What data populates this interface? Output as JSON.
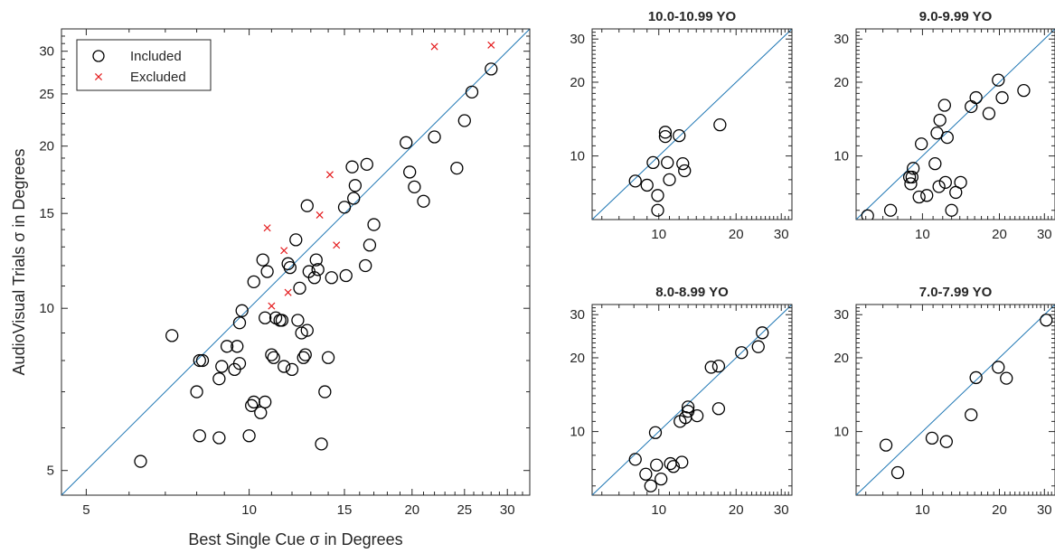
{
  "colors": {
    "included": "#000000",
    "excluded": "#e41a1c",
    "identity_line": "#1f77b4",
    "axes": "#262626"
  },
  "chart_data": [
    {
      "type": "scatter",
      "title": "",
      "xlabel": "Best Single Cue σ in Degrees",
      "ylabel": "AudioVisual Trials σ in Degrees",
      "xscale": "log",
      "yscale": "log",
      "xlim": [
        4.5,
        33
      ],
      "ylim": [
        4.5,
        33
      ],
      "xticks": [
        5,
        10,
        15,
        20,
        25,
        30
      ],
      "yticks": [
        5,
        10,
        15,
        20,
        25,
        30
      ],
      "reference_line": "y = x",
      "legend": {
        "position": "top-left",
        "entries": [
          "Included",
          "Excluded"
        ]
      },
      "series": [
        {
          "name": "Included",
          "marker": "circle",
          "points": [
            [
              6.3,
              5.2
            ],
            [
              7.2,
              8.9
            ],
            [
              8.0,
              7.0
            ],
            [
              8.1,
              8.0
            ],
            [
              8.2,
              8.0
            ],
            [
              8.1,
              5.8
            ],
            [
              8.8,
              5.75
            ],
            [
              8.8,
              7.4
            ],
            [
              8.9,
              7.8
            ],
            [
              9.1,
              8.5
            ],
            [
              9.4,
              7.7
            ],
            [
              9.5,
              8.5
            ],
            [
              9.6,
              7.9
            ],
            [
              9.6,
              9.4
            ],
            [
              9.7,
              9.9
            ],
            [
              10.0,
              5.8
            ],
            [
              10.1,
              6.6
            ],
            [
              10.2,
              6.7
            ],
            [
              10.2,
              11.2
            ],
            [
              10.5,
              6.4
            ],
            [
              10.6,
              12.3
            ],
            [
              10.7,
              9.6
            ],
            [
              10.7,
              6.7
            ],
            [
              10.8,
              11.7
            ],
            [
              11.0,
              8.2
            ],
            [
              11.1,
              8.1
            ],
            [
              11.2,
              9.6
            ],
            [
              11.4,
              9.5
            ],
            [
              11.5,
              9.5
            ],
            [
              11.6,
              7.8
            ],
            [
              11.8,
              12.1
            ],
            [
              11.9,
              11.9
            ],
            [
              12.0,
              7.7
            ],
            [
              12.2,
              13.4
            ],
            [
              12.3,
              9.5
            ],
            [
              12.4,
              10.9
            ],
            [
              12.5,
              9.0
            ],
            [
              12.6,
              8.1
            ],
            [
              12.7,
              8.2
            ],
            [
              12.8,
              9.1
            ],
            [
              12.8,
              15.5
            ],
            [
              12.9,
              11.7
            ],
            [
              13.2,
              11.4
            ],
            [
              13.3,
              12.3
            ],
            [
              13.4,
              11.8
            ],
            [
              13.6,
              5.6
            ],
            [
              13.8,
              7.0
            ],
            [
              14.0,
              8.1
            ],
            [
              14.2,
              11.4
            ],
            [
              15.0,
              15.4
            ],
            [
              15.1,
              11.5
            ],
            [
              15.5,
              18.3
            ],
            [
              15.6,
              16.0
            ],
            [
              15.7,
              16.9
            ],
            [
              16.4,
              12.0
            ],
            [
              16.5,
              18.5
            ],
            [
              16.7,
              13.1
            ],
            [
              17.0,
              14.3
            ],
            [
              19.5,
              20.3
            ],
            [
              19.8,
              17.9
            ],
            [
              20.2,
              16.8
            ],
            [
              21.0,
              15.8
            ],
            [
              22.0,
              20.8
            ],
            [
              24.2,
              18.2
            ],
            [
              25.0,
              22.3
            ],
            [
              25.8,
              25.2
            ],
            [
              28.0,
              27.8
            ]
          ]
        },
        {
          "name": "Excluded",
          "marker": "x",
          "points": [
            [
              10.8,
              14.1
            ],
            [
              11.6,
              12.8
            ],
            [
              11.8,
              10.7
            ],
            [
              11.0,
              10.1
            ],
            [
              13.5,
              14.9
            ],
            [
              14.1,
              17.7
            ],
            [
              14.5,
              13.1
            ],
            [
              22.0,
              30.6
            ],
            [
              28.0,
              30.8
            ]
          ]
        }
      ]
    },
    {
      "type": "scatter",
      "title": "10.0-10.99 YO",
      "xscale": "log",
      "yscale": "log",
      "xlim": [
        5.5,
        33
      ],
      "ylim": [
        5.5,
        33
      ],
      "xticks": [
        10,
        20,
        30
      ],
      "yticks": [
        10,
        20,
        30
      ],
      "reference_line": "y = x",
      "series": [
        {
          "marker": "circle",
          "points": [
            [
              8.1,
              7.9
            ],
            [
              9.0,
              7.6
            ],
            [
              9.5,
              9.4
            ],
            [
              9.9,
              6.9
            ],
            [
              9.9,
              6.0
            ],
            [
              10.6,
              12.5
            ],
            [
              10.6,
              12.0
            ],
            [
              10.8,
              9.4
            ],
            [
              11.0,
              8.0
            ],
            [
              12.0,
              12.1
            ],
            [
              12.4,
              9.3
            ],
            [
              12.6,
              8.7
            ],
            [
              17.3,
              13.4
            ]
          ]
        }
      ]
    },
    {
      "type": "scatter",
      "title": "9.0-9.99 YO",
      "xscale": "log",
      "yscale": "log",
      "xlim": [
        5.5,
        33
      ],
      "ylim": [
        5.5,
        33
      ],
      "xticks": [
        10,
        20,
        30
      ],
      "yticks": [
        10,
        20,
        30
      ],
      "reference_line": "y = x",
      "series": [
        {
          "marker": "circle",
          "points": [
            [
              6.1,
              5.7
            ],
            [
              7.5,
              6.0
            ],
            [
              8.9,
              8.2
            ],
            [
              9.0,
              7.7
            ],
            [
              9.1,
              8.2
            ],
            [
              9.2,
              8.9
            ],
            [
              9.7,
              6.8
            ],
            [
              9.9,
              11.2
            ],
            [
              10.4,
              6.9
            ],
            [
              11.2,
              9.3
            ],
            [
              11.4,
              12.4
            ],
            [
              11.6,
              7.5
            ],
            [
              11.7,
              14.0
            ],
            [
              12.2,
              16.1
            ],
            [
              12.3,
              7.8
            ],
            [
              12.5,
              11.9
            ],
            [
              13.0,
              6.0
            ],
            [
              13.5,
              7.1
            ],
            [
              14.1,
              7.8
            ],
            [
              15.5,
              15.9
            ],
            [
              16.2,
              17.3
            ],
            [
              18.2,
              14.9
            ],
            [
              19.8,
              20.4
            ],
            [
              20.5,
              17.3
            ],
            [
              24.9,
              18.5
            ]
          ]
        }
      ]
    },
    {
      "type": "scatter",
      "title": "8.0-8.99 YO",
      "xscale": "log",
      "yscale": "log",
      "xlim": [
        5.5,
        33
      ],
      "ylim": [
        5.5,
        33
      ],
      "xticks": [
        10,
        20,
        30
      ],
      "yticks": [
        10,
        20,
        30
      ],
      "reference_line": "y = x",
      "series": [
        {
          "marker": "circle",
          "points": [
            [
              8.1,
              7.7
            ],
            [
              8.9,
              6.7
            ],
            [
              9.3,
              6.0
            ],
            [
              9.7,
              9.9
            ],
            [
              9.8,
              7.3
            ],
            [
              10.2,
              6.4
            ],
            [
              11.1,
              7.4
            ],
            [
              11.4,
              7.2
            ],
            [
              12.1,
              11.0
            ],
            [
              12.3,
              7.5
            ],
            [
              12.7,
              11.4
            ],
            [
              13.0,
              12.1
            ],
            [
              13.0,
              12.6
            ],
            [
              14.1,
              11.6
            ],
            [
              16.0,
              18.3
            ],
            [
              17.1,
              12.4
            ],
            [
              17.1,
              18.5
            ],
            [
              21.0,
              21.0
            ],
            [
              24.4,
              22.2
            ],
            [
              25.3,
              25.3
            ]
          ]
        }
      ]
    },
    {
      "type": "scatter",
      "title": "7.0-7.99 YO",
      "xscale": "log",
      "yscale": "log",
      "xlim": [
        5.5,
        33
      ],
      "ylim": [
        5.5,
        33
      ],
      "xticks": [
        10,
        20,
        30
      ],
      "yticks": [
        10,
        20,
        30
      ],
      "reference_line": "y = x",
      "series": [
        {
          "marker": "circle",
          "points": [
            [
              7.2,
              8.8
            ],
            [
              8.0,
              6.8
            ],
            [
              10.9,
              9.4
            ],
            [
              12.4,
              9.1
            ],
            [
              15.5,
              11.7
            ],
            [
              16.2,
              16.6
            ],
            [
              19.8,
              18.3
            ],
            [
              21.3,
              16.5
            ],
            [
              30.5,
              28.5
            ]
          ]
        }
      ]
    }
  ]
}
